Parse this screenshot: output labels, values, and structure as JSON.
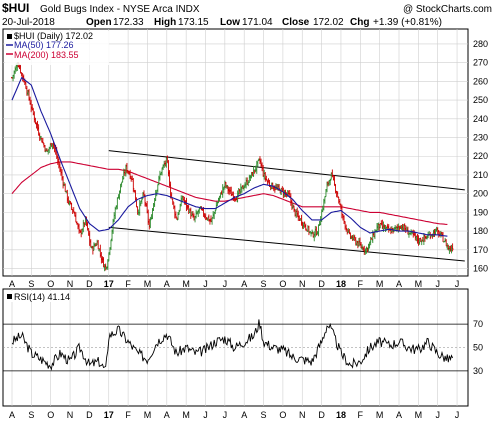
{
  "header": {
    "ticker": "$HUI",
    "name": "Gold Bugs Index - NYSE Arca INDX",
    "watermark": "@ StockCharts.com",
    "date": "20-Jul-2018",
    "open_label": "Open",
    "open_value": "172.33",
    "high_label": "High",
    "high_value": "173.15",
    "low_label": "Low",
    "low_value": "171.04",
    "close_label": "Close",
    "close_value": "172.02",
    "chg_label": "Chg",
    "chg_value": "+1.39 (+0.81%)"
  },
  "legend": {
    "price": "$HUI (Daily) 172.02",
    "ma50": "MA(50) 177.26",
    "ma200": "MA(200) 183.55",
    "rsi": "RSI(14) 41.14"
  },
  "colors": {
    "price_up": "#2e8b2e",
    "price_down": "#cc0000",
    "ma50": "#1a1a9e",
    "ma200": "#cc0033",
    "rsi_line": "#000000",
    "grid": "#cfcfcf"
  },
  "chart_data": [
    {
      "type": "line",
      "title": "$HUI Gold Bugs Index - NYSE Arca INDX",
      "x_ticks": [
        "A",
        "S",
        "O",
        "N",
        "D",
        "17",
        "F",
        "M",
        "A",
        "M",
        "J",
        "J",
        "A",
        "S",
        "O",
        "N",
        "D",
        "18",
        "F",
        "M",
        "A",
        "M",
        "J",
        "J"
      ],
      "y_ticks": [
        160,
        170,
        180,
        190,
        200,
        210,
        220,
        230,
        240,
        250,
        260,
        270,
        280
      ],
      "ylim": [
        156,
        288
      ],
      "grid": true,
      "series": [
        {
          "name": "$HUI (Daily)",
          "style": "ohlc",
          "anchors": [
            [
              0,
              262
            ],
            [
              0.3,
              270
            ],
            [
              0.7,
              258
            ],
            [
              1.0,
              246
            ],
            [
              1.4,
              232
            ],
            [
              1.8,
              222
            ],
            [
              2.1,
              228
            ],
            [
              2.5,
              212
            ],
            [
              2.9,
              196
            ],
            [
              3.2,
              190
            ],
            [
              3.5,
              178
            ],
            [
              3.8,
              186
            ],
            [
              4.1,
              170
            ],
            [
              4.4,
              174
            ],
            [
              4.7,
              163
            ],
            [
              4.85,
              160
            ],
            [
              5.0,
              168
            ],
            [
              5.3,
              190
            ],
            [
              5.6,
              204
            ],
            [
              5.9,
              214
            ],
            [
              6.2,
              208
            ],
            [
              6.5,
              190
            ],
            [
              6.8,
              200
            ],
            [
              7.0,
              188
            ],
            [
              7.1,
              182
            ],
            [
              7.4,
              200
            ],
            [
              7.7,
              212
            ],
            [
              8.0,
              218
            ],
            [
              8.2,
              200
            ],
            [
              8.5,
              186
            ],
            [
              8.8,
              198
            ],
            [
              9.1,
              192
            ],
            [
              9.4,
              186
            ],
            [
              9.7,
              192
            ],
            [
              10.0,
              188
            ],
            [
              10.3,
              185
            ],
            [
              10.6,
              195
            ],
            [
              11.0,
              205
            ],
            [
              11.3,
              200
            ],
            [
              11.6,
              198
            ],
            [
              11.9,
              203
            ],
            [
              12.2,
              207
            ],
            [
              12.5,
              212
            ],
            [
              12.8,
              218
            ],
            [
              13.0,
              210
            ],
            [
              13.3,
              205
            ],
            [
              13.6,
              203
            ],
            [
              14.0,
              201
            ],
            [
              14.3,
              199
            ],
            [
              14.6,
              190
            ],
            [
              14.9,
              186
            ],
            [
              15.2,
              182
            ],
            [
              15.5,
              178
            ],
            [
              15.8,
              180
            ],
            [
              16.1,
              195
            ],
            [
              16.3,
              205
            ],
            [
              16.5,
              210
            ],
            [
              16.8,
              200
            ],
            [
              17.1,
              187
            ],
            [
              17.4,
              178
            ],
            [
              17.7,
              175
            ],
            [
              18.0,
              172
            ],
            [
              18.3,
              170
            ],
            [
              18.6,
              176
            ],
            [
              18.9,
              183
            ],
            [
              19.2,
              182
            ],
            [
              19.5,
              180
            ],
            [
              19.8,
              181
            ],
            [
              20.1,
              183
            ],
            [
              20.4,
              180
            ],
            [
              20.7,
              178
            ],
            [
              21.0,
              175
            ],
            [
              21.3,
              176
            ],
            [
              21.6,
              178
            ],
            [
              21.9,
              180
            ],
            [
              22.2,
              177
            ],
            [
              22.5,
              172
            ],
            [
              22.6,
              170
            ],
            [
              22.8,
              172
            ]
          ]
        },
        {
          "name": "MA(50)",
          "value": 177.26,
          "anchors": [
            [
              0,
              250
            ],
            [
              0.5,
              262
            ],
            [
              1.0,
              258
            ],
            [
              1.5,
              244
            ],
            [
              2.0,
              232
            ],
            [
              2.5,
              218
            ],
            [
              3.0,
              205
            ],
            [
              3.5,
              192
            ],
            [
              4.0,
              184
            ],
            [
              4.5,
              180
            ],
            [
              5.0,
              181
            ],
            [
              5.5,
              186
            ],
            [
              6.0,
              193
            ],
            [
              6.5,
              197
            ],
            [
              7.0,
              199
            ],
            [
              7.5,
              200
            ],
            [
              8.0,
              199
            ],
            [
              8.5,
              197
            ],
            [
              9.0,
              195
            ],
            [
              9.5,
              193
            ],
            [
              10.0,
              192
            ],
            [
              10.5,
              192
            ],
            [
              11.0,
              195
            ],
            [
              11.5,
              198
            ],
            [
              12.0,
              200
            ],
            [
              12.5,
              203
            ],
            [
              13.0,
              205
            ],
            [
              13.5,
              204
            ],
            [
              14.0,
              201
            ],
            [
              14.5,
              197
            ],
            [
              15.0,
              191
            ],
            [
              15.5,
              186
            ],
            [
              16.0,
              186
            ],
            [
              16.5,
              190
            ],
            [
              17.0,
              191
            ],
            [
              17.5,
              187
            ],
            [
              18.0,
              182
            ],
            [
              18.5,
              179
            ],
            [
              19.0,
              180
            ],
            [
              19.5,
              181
            ],
            [
              20.0,
              180
            ],
            [
              20.5,
              180
            ],
            [
              21.0,
              179
            ],
            [
              21.5,
              178
            ],
            [
              22.0,
              178
            ],
            [
              22.5,
              177.26
            ]
          ]
        },
        {
          "name": "MA(200)",
          "value": 183.55,
          "anchors": [
            [
              0,
              200
            ],
            [
              0.5,
              206
            ],
            [
              1.0,
              210
            ],
            [
              1.5,
              214
            ],
            [
              2.0,
              216
            ],
            [
              2.5,
              217
            ],
            [
              3.0,
              217
            ],
            [
              3.5,
              216
            ],
            [
              4.0,
              215
            ],
            [
              4.5,
              214
            ],
            [
              5.0,
              213
            ],
            [
              5.5,
              213
            ],
            [
              6.0,
              212
            ],
            [
              6.5,
              210
            ],
            [
              7.0,
              208
            ],
            [
              7.5,
              206
            ],
            [
              8.0,
              204
            ],
            [
              8.5,
              202
            ],
            [
              9.0,
              200
            ],
            [
              9.5,
              198
            ],
            [
              10.0,
              197
            ],
            [
              10.5,
              196
            ],
            [
              11.0,
              196
            ],
            [
              11.5,
              197
            ],
            [
              12.0,
              198
            ],
            [
              12.5,
              199
            ],
            [
              13.0,
              200
            ],
            [
              13.5,
              199
            ],
            [
              14.0,
              197
            ],
            [
              14.5,
              195
            ],
            [
              15.0,
              193
            ],
            [
              15.5,
              193
            ],
            [
              16.0,
              193
            ],
            [
              16.5,
              193
            ],
            [
              17.0,
              193
            ],
            [
              17.5,
              192
            ],
            [
              18.0,
              191
            ],
            [
              18.5,
              190
            ],
            [
              19.0,
              190
            ],
            [
              19.5,
              189
            ],
            [
              20.0,
              188
            ],
            [
              20.5,
              187
            ],
            [
              21.0,
              186
            ],
            [
              21.5,
              185
            ],
            [
              22.0,
              184
            ],
            [
              22.5,
              183.55
            ]
          ]
        }
      ],
      "trendlines": [
        {
          "from": [
            5.0,
            223
          ],
          "to": [
            23.4,
            202
          ]
        },
        {
          "from": [
            5.0,
            182
          ],
          "to": [
            23.4,
            164
          ]
        }
      ]
    },
    {
      "type": "line",
      "title": "RSI(14)",
      "y_ticks": [
        30,
        50,
        70
      ],
      "ylim": [
        0,
        100
      ],
      "reference_lines": [
        30,
        70
      ],
      "series": [
        {
          "name": "RSI(14)",
          "value": 41.14,
          "anchors": [
            [
              0,
              55
            ],
            [
              0.5,
              60
            ],
            [
              1.0,
              45
            ],
            [
              1.5,
              40
            ],
            [
              2.0,
              35
            ],
            [
              2.5,
              45
            ],
            [
              3.0,
              38
            ],
            [
              3.5,
              50
            ],
            [
              4.0,
              35
            ],
            [
              4.5,
              38
            ],
            [
              4.85,
              30
            ],
            [
              5.0,
              60
            ],
            [
              5.5,
              65
            ],
            [
              6.0,
              55
            ],
            [
              6.5,
              45
            ],
            [
              7.0,
              40
            ],
            [
              7.5,
              55
            ],
            [
              8.0,
              62
            ],
            [
              8.5,
              45
            ],
            [
              9.0,
              50
            ],
            [
              9.5,
              45
            ],
            [
              10.0,
              48
            ],
            [
              10.5,
              55
            ],
            [
              11.0,
              58
            ],
            [
              11.5,
              50
            ],
            [
              12.0,
              55
            ],
            [
              12.5,
              60
            ],
            [
              12.8,
              72
            ],
            [
              13.0,
              55
            ],
            [
              13.5,
              50
            ],
            [
              14.0,
              48
            ],
            [
              14.5,
              42
            ],
            [
              15.0,
              40
            ],
            [
              15.5,
              38
            ],
            [
              16.0,
              55
            ],
            [
              16.3,
              70
            ],
            [
              16.5,
              65
            ],
            [
              17.0,
              45
            ],
            [
              17.5,
              35
            ],
            [
              18.0,
              38
            ],
            [
              18.5,
              50
            ],
            [
              19.0,
              55
            ],
            [
              19.5,
              52
            ],
            [
              20.0,
              55
            ],
            [
              20.5,
              50
            ],
            [
              21.0,
              48
            ],
            [
              21.5,
              55
            ],
            [
              22.0,
              45
            ],
            [
              22.5,
              40
            ],
            [
              22.8,
              41.14
            ]
          ]
        }
      ],
      "x_ticks": [
        "A",
        "S",
        "O",
        "N",
        "D",
        "17",
        "F",
        "M",
        "A",
        "M",
        "J",
        "J",
        "A",
        "S",
        "O",
        "N",
        "D",
        "18",
        "F",
        "M",
        "A",
        "M",
        "J",
        "J"
      ]
    }
  ]
}
